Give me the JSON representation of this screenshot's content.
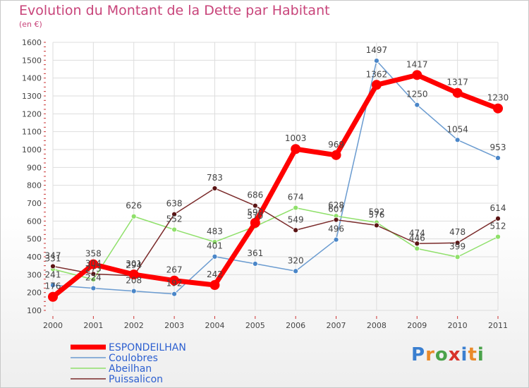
{
  "header": {
    "title": "Evolution du Montant de la Dette par Habitant",
    "subtitle": "(en €)"
  },
  "chart_data": {
    "type": "line",
    "title": "Evolution du Montant de la Dette par Habitant",
    "subtitle": "(en €)",
    "x": [
      "2000",
      "2001",
      "2002",
      "2003",
      "2004",
      "2005",
      "2006",
      "2007",
      "2008",
      "2009",
      "2010",
      "2011"
    ],
    "ylim": [
      100,
      1600
    ],
    "yticks": [
      "100",
      "200",
      "300",
      "400",
      "500",
      "600",
      "700",
      "800",
      "900",
      "1000",
      "1100",
      "1200",
      "1300",
      "1400",
      "1500",
      "1600"
    ],
    "grid": true,
    "legend_position": "bottom-left",
    "series": [
      {
        "name": "ESPONDEILHAN",
        "color": "#ff0000",
        "values": [
          176,
          358,
          301,
          267,
          242,
          590,
          1003,
          969,
          1362,
          1417,
          1317,
          1230
        ]
      },
      {
        "name": "Coulobres",
        "color": "#6a9bd0",
        "values": [
          241,
          224,
          208,
          192,
          401,
          361,
          320,
          496,
          1497,
          1250,
          1054,
          953
        ]
      },
      {
        "name": "Abeilhan",
        "color": "#8fe06a",
        "values": [
          331,
          273,
          626,
          552,
          483,
          570,
          674,
          628,
          592,
          446,
          399,
          512
        ]
      },
      {
        "name": "Puissalicon",
        "color": "#7a2a2a",
        "values": [
          347,
          304,
          294,
          638,
          783,
          686,
          549,
          607,
          576,
          474,
          478,
          614
        ]
      }
    ]
  },
  "logo": {
    "letters": [
      "P",
      "r",
      "o",
      "x",
      "i",
      "t",
      "i"
    ],
    "colors": [
      "#3a7fd0",
      "#e98a2a",
      "#4aa24a",
      "#d8332a",
      "#3a7fd0",
      "#e98a2a",
      "#4aa24a"
    ]
  }
}
